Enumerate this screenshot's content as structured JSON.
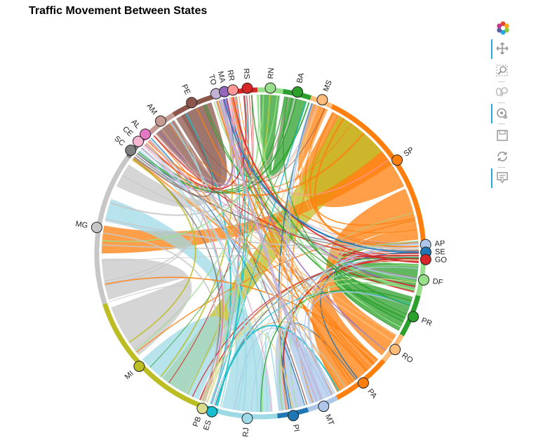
{
  "title": "Traffic Movement Between States",
  "toolbar": {
    "items": [
      {
        "name": "bokeh-logo-icon",
        "active": false
      },
      {
        "name": "pan-icon",
        "active": true
      },
      {
        "name": "box-zoom-icon",
        "active": false
      },
      {
        "name": "wheel-zoom-icon",
        "active": false
      },
      {
        "name": "tap-icon",
        "active": true
      },
      {
        "name": "save-icon",
        "active": false
      },
      {
        "name": "reset-icon",
        "active": false
      },
      {
        "name": "hover-icon",
        "active": true
      }
    ]
  },
  "chart_data": {
    "type": "chord",
    "title": "Traffic Movement Between States",
    "nodes": [
      {
        "name": "AP",
        "color": "#aec7e8"
      },
      {
        "name": "SE",
        "color": "#1f77b4"
      },
      {
        "name": "GO",
        "color": "#d62728"
      },
      {
        "name": "DF",
        "color": "#98df8a"
      },
      {
        "name": "PR",
        "color": "#2ca02c"
      },
      {
        "name": "RO",
        "color": "#ffbb78"
      },
      {
        "name": "PA",
        "color": "#ff7f0e"
      },
      {
        "name": "MT",
        "color": "#aec7e8"
      },
      {
        "name": "PI",
        "color": "#1f77b4"
      },
      {
        "name": "RJ",
        "color": "#9edae5"
      },
      {
        "name": "ES",
        "color": "#17becf"
      },
      {
        "name": "PB",
        "color": "#dbdb8d"
      },
      {
        "name": "MI",
        "color": "#bcbd22"
      },
      {
        "name": "MG",
        "color": "#c7c7c7"
      },
      {
        "name": "SC",
        "color": "#7f7f7f"
      },
      {
        "name": "CE",
        "color": "#f7b6d2"
      },
      {
        "name": "AL",
        "color": "#e377c2"
      },
      {
        "name": "AM",
        "color": "#c49c94"
      },
      {
        "name": "PE",
        "color": "#8c564b"
      },
      {
        "name": "TO",
        "color": "#c5b0d5"
      },
      {
        "name": "MA",
        "color": "#9467bd"
      },
      {
        "name": "RR",
        "color": "#ff9896"
      },
      {
        "name": "RS",
        "color": "#d62728"
      },
      {
        "name": "RN",
        "color": "#98df8a"
      },
      {
        "name": "BA",
        "color": "#2ca02c"
      },
      {
        "name": "MS",
        "color": "#ffbb78"
      },
      {
        "name": "SP",
        "color": "#ff7f0e"
      }
    ],
    "arcs": [
      {
        "name": "AP",
        "start": -4.5,
        "end": -1.5
      },
      {
        "name": "SE",
        "start": -1.5,
        "end": 0.8
      },
      {
        "name": "GO",
        "start": 0.8,
        "end": 3.5
      },
      {
        "name": "DF",
        "start": 3.5,
        "end": 15
      },
      {
        "name": "PR",
        "start": 15,
        "end": 30
      },
      {
        "name": "RO",
        "start": 30,
        "end": 41
      },
      {
        "name": "PA",
        "start": 41,
        "end": 62
      },
      {
        "name": "MT",
        "start": 62,
        "end": 73
      },
      {
        "name": "PI",
        "start": 73,
        "end": 84
      },
      {
        "name": "RJ",
        "start": 84,
        "end": 105
      },
      {
        "name": "ES",
        "start": 105,
        "end": 109
      },
      {
        "name": "PB",
        "start": 109,
        "end": 112
      },
      {
        "name": "MI",
        "start": 112,
        "end": 162
      },
      {
        "name": "MG",
        "start": 162,
        "end": 216
      },
      {
        "name": "SC",
        "start": 216,
        "end": 221
      },
      {
        "name": "CE",
        "start": 221,
        "end": 224
      },
      {
        "name": "AL",
        "start": 224,
        "end": 228
      },
      {
        "name": "AM",
        "start": 228,
        "end": 238
      },
      {
        "name": "PE",
        "start": 238,
        "end": 253
      },
      {
        "name": "TO",
        "start": 253,
        "end": 256
      },
      {
        "name": "MA",
        "start": 256,
        "end": 259
      },
      {
        "name": "RR",
        "start": 259,
        "end": 262
      },
      {
        "name": "RS",
        "start": 262,
        "end": 269
      },
      {
        "name": "RN",
        "start": 269,
        "end": 278
      },
      {
        "name": "BA",
        "start": 278,
        "end": 288
      },
      {
        "name": "MS",
        "start": 288,
        "end": 296
      },
      {
        "name": "SP",
        "start": 296,
        "end": 355.5
      }
    ],
    "ribbons": [
      {
        "from": "SP",
        "to": "MS",
        "a1": 297,
        "a2": 335,
        "b1": 289,
        "b2": 295,
        "color": "#ff7f0e"
      },
      {
        "from": "SP",
        "to": "RO",
        "a1": 336,
        "a2": 350,
        "b1": 31,
        "b2": 40,
        "color": "#ff7f0e"
      },
      {
        "from": "SP",
        "to": "PA",
        "a1": 350,
        "a2": 355,
        "b1": 42,
        "b2": 61,
        "color": "#ff7f0e"
      },
      {
        "from": "SP",
        "to": "MI",
        "a1": 300,
        "a2": 320,
        "b1": 118,
        "b2": 128,
        "color": "#bcbd22"
      },
      {
        "from": "SP",
        "to": "MG",
        "a1": 320,
        "a2": 326,
        "b1": 180,
        "b2": 190,
        "color": "#ff7f0e"
      },
      {
        "from": "BA",
        "to": "RN",
        "a1": 279,
        "a2": 287,
        "b1": 270,
        "b2": 277,
        "color": "#2ca02c"
      },
      {
        "from": "MG",
        "to": "MI",
        "a1": 163,
        "a2": 178,
        "b1": 140,
        "b2": 160,
        "color": "#c7c7c7"
      },
      {
        "from": "MG",
        "to": "RJ",
        "a1": 192,
        "a2": 200,
        "b1": 86,
        "b2": 100,
        "color": "#9edae5"
      },
      {
        "from": "MG",
        "to": "PE",
        "a1": 205,
        "a2": 214,
        "b1": 240,
        "b2": 250,
        "color": "#c7c7c7"
      },
      {
        "from": "MI",
        "to": "RJ",
        "a1": 113,
        "a2": 138,
        "b1": 100,
        "b2": 104,
        "color": "#9edae5"
      },
      {
        "from": "MT",
        "to": "PI",
        "a1": 63,
        "a2": 72,
        "b1": 74,
        "b2": 83,
        "color": "#aec7e8"
      },
      {
        "from": "PR",
        "to": "DF",
        "a1": 16,
        "a2": 29,
        "b1": 4,
        "b2": 14,
        "color": "#2ca02c"
      },
      {
        "from": "PE",
        "to": "AM",
        "a1": 238,
        "a2": 252,
        "b1": 229,
        "b2": 237,
        "color": "#8c564b"
      }
    ]
  }
}
